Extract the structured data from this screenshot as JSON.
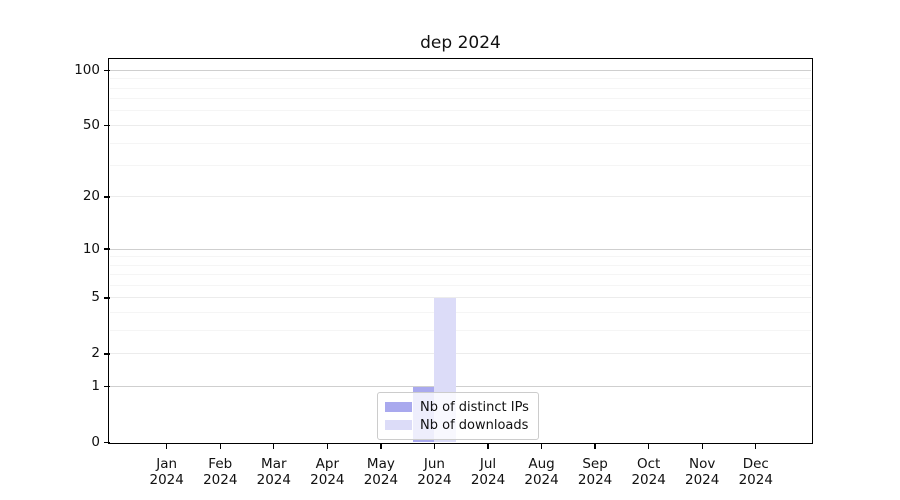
{
  "chart_data": {
    "type": "bar",
    "title": "dep 2024",
    "categories": [
      "Jan",
      "Feb",
      "Mar",
      "Apr",
      "May",
      "Jun",
      "Jul",
      "Aug",
      "Sep",
      "Oct",
      "Nov",
      "Dec"
    ],
    "year": "2024",
    "series": [
      {
        "name": "Nb of distinct IPs",
        "color": "#a9a9ee",
        "values": [
          0,
          0,
          0,
          0,
          0,
          1,
          0,
          0,
          0,
          0,
          0,
          0
        ]
      },
      {
        "name": "Nb of downloads",
        "color": "#dcdcf8",
        "values": [
          0,
          0,
          0,
          0,
          0,
          5,
          0,
          0,
          0,
          0,
          0,
          0
        ]
      }
    ],
    "yscale": "log10(1+v)",
    "ylim": [
      0,
      100
    ],
    "yticks": [
      0,
      1,
      2,
      5,
      10,
      20,
      50,
      100
    ],
    "ytick_decades": [
      1,
      10,
      100
    ],
    "yminor_ticks": [
      3,
      4,
      6,
      7,
      8,
      9,
      30,
      40,
      60,
      70,
      80,
      90
    ],
    "grid": "on",
    "legend_position": "lower center",
    "grid_colors": {
      "decade": "#cfcfcf",
      "labeled": "#ececec",
      "minor": "#f5f5f5"
    }
  }
}
